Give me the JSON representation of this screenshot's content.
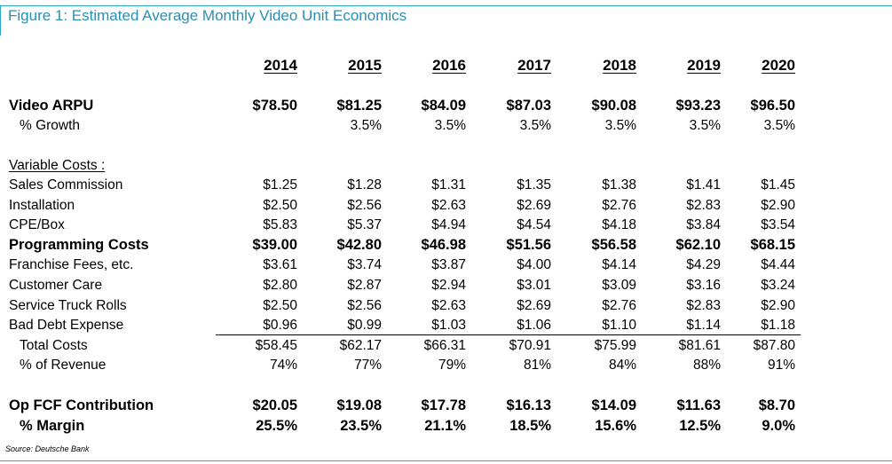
{
  "title": "Figure 1: Estimated Average Monthly Video Unit Economics",
  "years": [
    "2014",
    "2015",
    "2016",
    "2017",
    "2018",
    "2019",
    "2020"
  ],
  "rows": {
    "arpu": {
      "label": "Video ARPU",
      "values": [
        "$78.50",
        "$81.25",
        "$84.09",
        "$87.03",
        "$90.08",
        "$93.23",
        "$96.50"
      ]
    },
    "growth": {
      "label": "% Growth",
      "values": [
        "",
        "3.5%",
        "3.5%",
        "3.5%",
        "3.5%",
        "3.5%",
        "3.5%"
      ]
    },
    "variable_costs_header": {
      "label": "Variable Costs :"
    },
    "sales_commission": {
      "label": "Sales Commission",
      "values": [
        "$1.25",
        "$1.28",
        "$1.31",
        "$1.35",
        "$1.38",
        "$1.41",
        "$1.45"
      ]
    },
    "installation": {
      "label": "Installation",
      "values": [
        "$2.50",
        "$2.56",
        "$2.63",
        "$2.69",
        "$2.76",
        "$2.83",
        "$2.90"
      ]
    },
    "cpe_box": {
      "label": "CPE/Box",
      "values": [
        "$5.83",
        "$5.37",
        "$4.94",
        "$4.54",
        "$4.18",
        "$3.84",
        "$3.54"
      ]
    },
    "programming_costs": {
      "label": "Programming Costs",
      "values": [
        "$39.00",
        "$42.80",
        "$46.98",
        "$51.56",
        "$56.58",
        "$62.10",
        "$68.15"
      ]
    },
    "franchise_fees": {
      "label": "Franchise Fees, etc.",
      "values": [
        "$3.61",
        "$3.74",
        "$3.87",
        "$4.00",
        "$4.14",
        "$4.29",
        "$4.44"
      ]
    },
    "customer_care": {
      "label": "Customer Care",
      "values": [
        "$2.80",
        "$2.87",
        "$2.94",
        "$3.01",
        "$3.09",
        "$3.16",
        "$3.24"
      ]
    },
    "service_truck_rolls": {
      "label": "Service Truck Rolls",
      "values": [
        "$2.50",
        "$2.56",
        "$2.63",
        "$2.69",
        "$2.76",
        "$2.83",
        "$2.90"
      ]
    },
    "bad_debt_expense": {
      "label": "Bad Debt Expense",
      "values": [
        "$0.96",
        "$0.99",
        "$1.03",
        "$1.06",
        "$1.10",
        "$1.14",
        "$1.18"
      ]
    },
    "total_costs": {
      "label": "Total Costs",
      "values": [
        "$58.45",
        "$62.17",
        "$66.31",
        "$70.91",
        "$75.99",
        "$81.61",
        "$87.80"
      ]
    },
    "pct_revenue": {
      "label": "% of Revenue",
      "values": [
        "74%",
        "77%",
        "79%",
        "81%",
        "84%",
        "88%",
        "91%"
      ]
    },
    "op_fcf": {
      "label": "Op FCF Contribution",
      "values": [
        "$20.05",
        "$19.08",
        "$17.78",
        "$16.13",
        "$14.09",
        "$11.63",
        "$8.70"
      ]
    },
    "margin": {
      "label": "% Margin",
      "values": [
        "25.5%",
        "23.5%",
        "21.1%",
        "18.5%",
        "15.6%",
        "12.5%",
        "9.0%"
      ]
    }
  },
  "source": "Source: Deutsche Bank"
}
